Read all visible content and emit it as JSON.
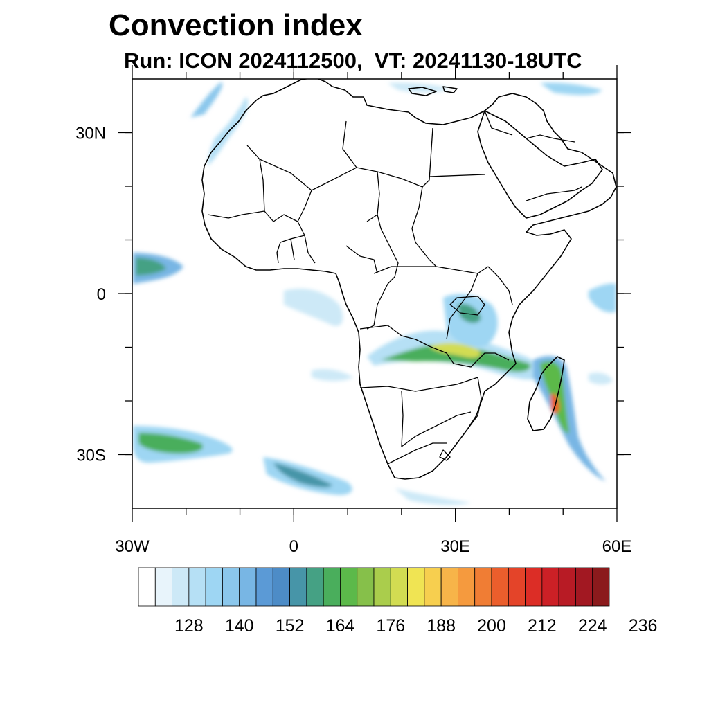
{
  "title": "Convection index",
  "subtitle": "Run: ICON 2024112500,  VT: 20241130-18UTC",
  "map": {
    "lon_range": [
      -30,
      60
    ],
    "lat_range": [
      -40,
      40
    ],
    "lat_ticks": [
      {
        "lat": 30,
        "label": "30N"
      },
      {
        "lat": 0,
        "label": "0"
      },
      {
        "lat": -30,
        "label": "30S"
      }
    ],
    "lon_ticks": [
      {
        "lon": -30,
        "label": "30W"
      },
      {
        "lon": 0,
        "label": "0"
      },
      {
        "lon": 30,
        "label": "30E"
      },
      {
        "lon": 60,
        "label": "60E"
      }
    ],
    "minor_tick_step_deg": 10
  },
  "colorbar": {
    "colors": [
      "#ffffff",
      "#e8f4fb",
      "#cde9f7",
      "#b6e0f5",
      "#9ed6f3",
      "#8bc7ec",
      "#78b6e4",
      "#5b9ad6",
      "#4d8cc7",
      "#4795a8",
      "#45a184",
      "#4aae5c",
      "#5cb94a",
      "#86c04a",
      "#aacd4c",
      "#d2dc52",
      "#f0e453",
      "#f7cf4f",
      "#f7b449",
      "#f59a3e",
      "#f07d34",
      "#eb5e2c",
      "#e44429",
      "#dc2d26",
      "#cc2026",
      "#b81b25",
      "#a21822",
      "#8b1a1c"
    ],
    "labels": [
      "128",
      "140",
      "152",
      "164",
      "176",
      "188",
      "200",
      "212",
      "224",
      "236"
    ]
  },
  "icons": {
    "coastlines": "coastline-outline",
    "borders": "country-border-lines"
  }
}
